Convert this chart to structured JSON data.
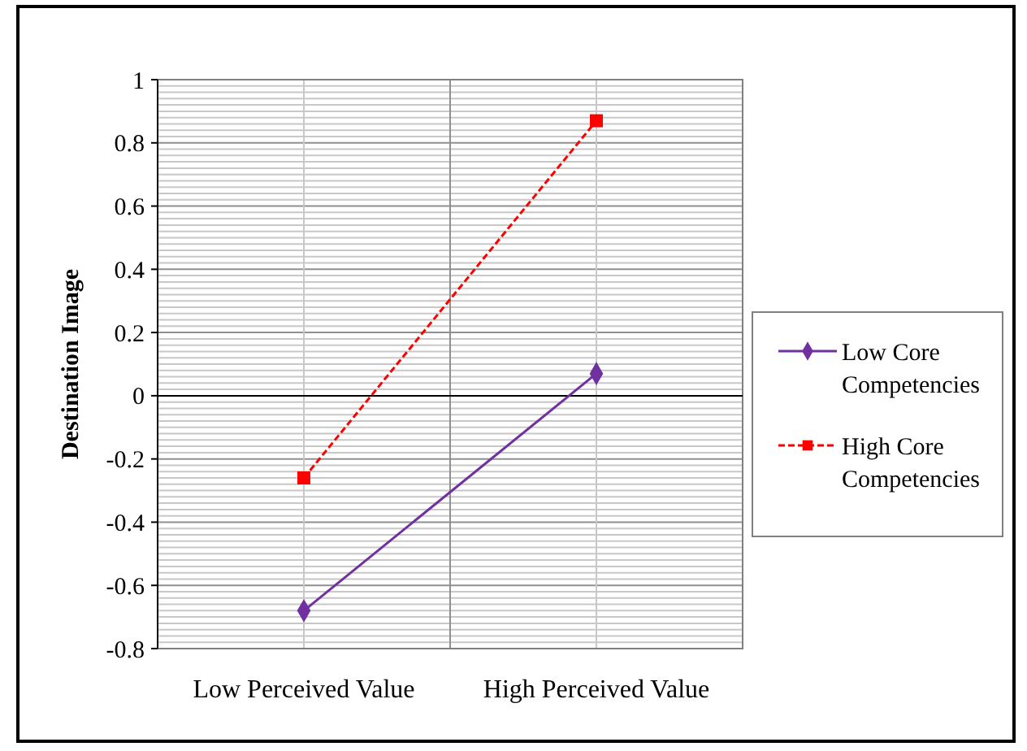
{
  "chart_data": {
    "type": "line",
    "ylabel": "Destination Image",
    "categories": [
      "Low Perceived Value",
      "High Perceived Value"
    ],
    "series": [
      {
        "name": "Low Core Competencies",
        "color": "#7030a0",
        "values": [
          -0.68,
          0.07
        ],
        "marker": "diamond",
        "line_style": "solid"
      },
      {
        "name": "High Core Competencies",
        "color": "#ff0000",
        "values": [
          -0.26,
          0.87
        ],
        "marker": "square",
        "line_style": "dashed"
      }
    ],
    "ylim": [
      -0.8,
      1
    ],
    "yticks": [
      -0.8,
      -0.6,
      -0.4,
      -0.2,
      0,
      0.2,
      0.4,
      0.6,
      0.8,
      1
    ],
    "grid": true,
    "legend": "right"
  }
}
